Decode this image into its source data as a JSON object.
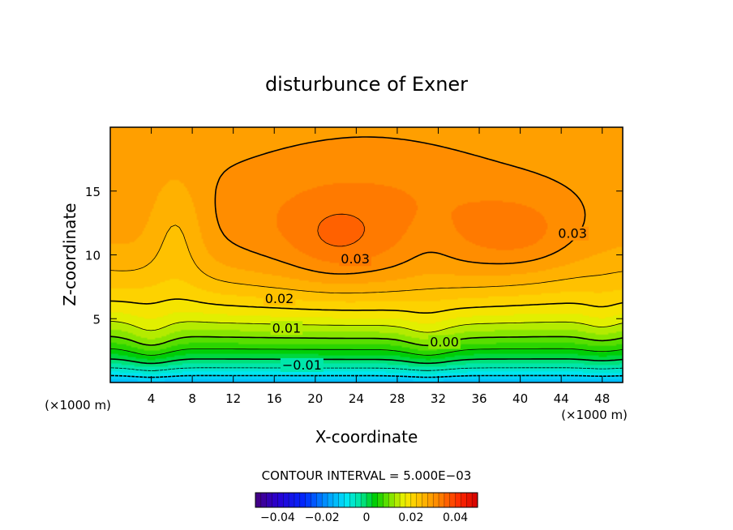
{
  "chart_data": {
    "type": "heatmap",
    "title": "disturbunce of Exner",
    "xlabel": "X-coordinate",
    "ylabel": "Z-coordinate",
    "x_unit": "(×1000 m)",
    "y_unit": "(×1000 m)",
    "xlim": [
      0,
      50
    ],
    "ylim": [
      0,
      20
    ],
    "x_ticks": [
      4,
      8,
      12,
      16,
      20,
      24,
      28,
      32,
      36,
      40,
      44,
      48
    ],
    "y_ticks": [
      5,
      10,
      15
    ],
    "contour_interval_label": "CONTOUR INTERVAL = 5.000E−03",
    "contour_labels": [
      {
        "text": "0.03",
        "x": 23.9,
        "z": 9.7
      },
      {
        "text": "0.03",
        "x": 45.1,
        "z": 11.7
      },
      {
        "text": "0.02",
        "x": 16.5,
        "z": 6.6
      },
      {
        "text": "0.01",
        "x": 17.2,
        "z": 4.3
      },
      {
        "text": "0.00",
        "x": 32.6,
        "z": 3.2
      },
      {
        "text": "−0.01",
        "x": 18.7,
        "z": 1.4
      }
    ],
    "field": {
      "description": "perturbation Exner function, range approx -0.015 to 0.037",
      "approx_min": -0.015,
      "approx_max": 0.037
    },
    "colorbar": {
      "vmin": -0.05,
      "vmax": 0.05,
      "tick_labels": [
        "−0.04",
        "−0.02",
        "0",
        "0.02",
        "0.04"
      ],
      "tick_values": [
        -0.04,
        -0.02,
        0,
        0.02,
        0.04
      ]
    }
  }
}
